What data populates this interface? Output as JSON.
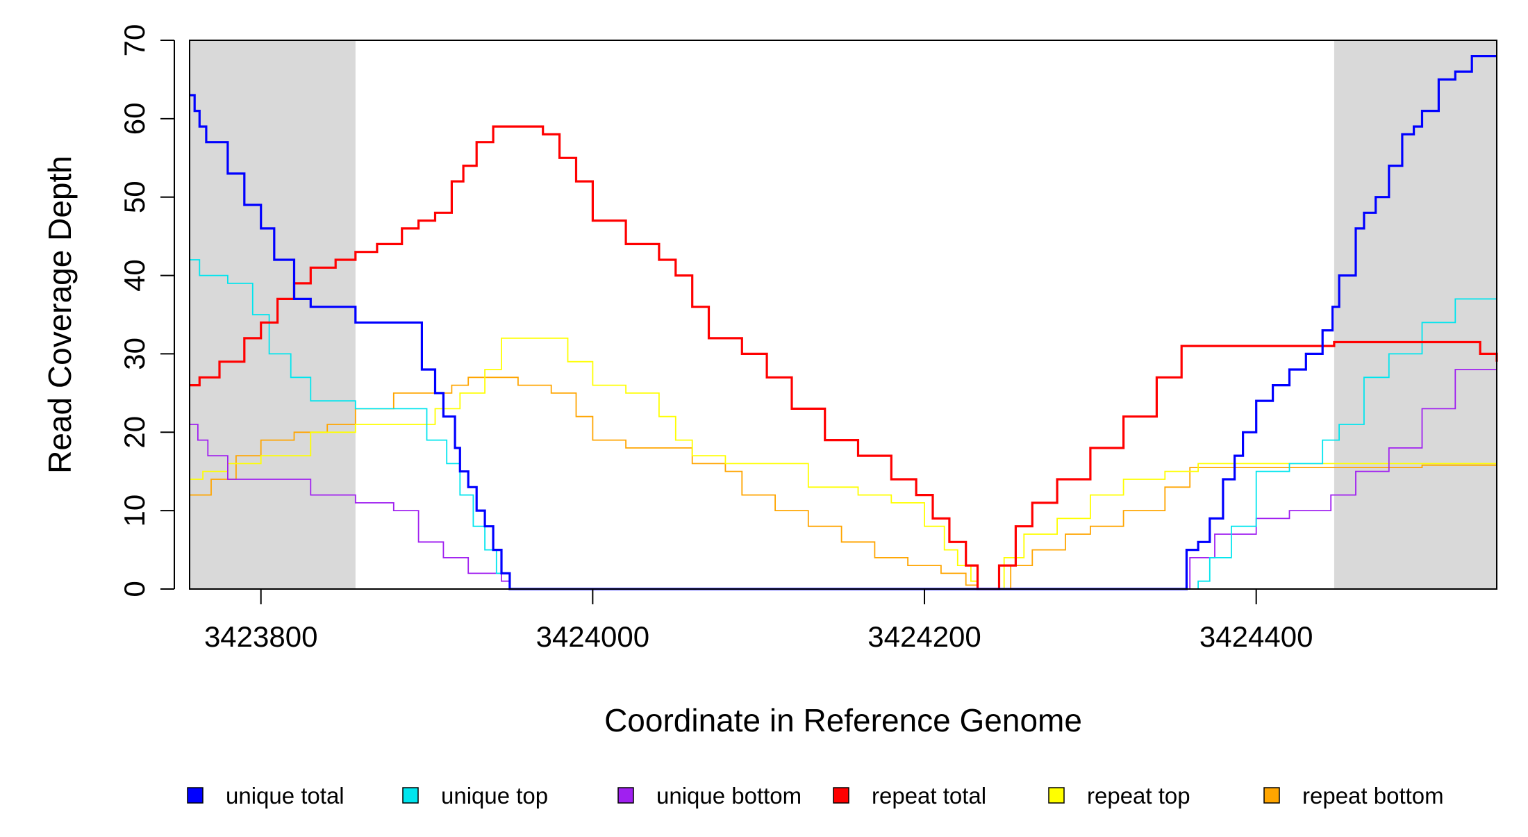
{
  "chart_data": {
    "type": "line",
    "xlabel": "Coordinate in Reference Genome",
    "ylabel": "Read Coverage Depth",
    "xlim": [
      3423757,
      3424545
    ],
    "ylim": [
      0,
      70
    ],
    "x_ticks": [
      3423800,
      3424000,
      3424200,
      3424400
    ],
    "x_tick_labels": [
      "3423800",
      "3424000",
      "3424200",
      "3424400"
    ],
    "y_ticks": [
      0,
      10,
      20,
      30,
      40,
      50,
      60,
      70
    ],
    "y_tick_labels": [
      "0",
      "10",
      "20",
      "30",
      "40",
      "50",
      "60",
      "70"
    ],
    "shaded_regions": [
      [
        3423757,
        3423857
      ],
      [
        3424447,
        3424545
      ]
    ],
    "grid": false,
    "legend_position": "bottom",
    "series": [
      {
        "name": "unique total",
        "color": "#0000ff",
        "x": [
          3423757,
          3423760,
          3423763,
          3423767,
          3423780,
          3423790,
          3423800,
          3423808,
          3423820,
          3423830,
          3423857,
          3423885,
          3423897,
          3423905,
          3423910,
          3423917,
          3423920,
          3423925,
          3423930,
          3423935,
          3423940,
          3423945,
          3423950,
          3424355,
          3424358,
          3424365,
          3424372,
          3424380,
          3424387,
          3424392,
          3424400,
          3424410,
          3424420,
          3424430,
          3424440,
          3424446,
          3424450,
          3424460,
          3424465,
          3424472,
          3424480,
          3424488,
          3424495,
          3424500,
          3424510,
          3424520,
          3424530,
          3424545
        ],
        "y": [
          63,
          61,
          59,
          57,
          53,
          49,
          46,
          42,
          37,
          36,
          34,
          34,
          28,
          25,
          22,
          18,
          15,
          13,
          10,
          8,
          5,
          2,
          0,
          0,
          5,
          6,
          9,
          14,
          17,
          20,
          24,
          26,
          28,
          30,
          33,
          36,
          40,
          46,
          48,
          50,
          54,
          58,
          59,
          61,
          65,
          66,
          68,
          68
        ]
      },
      {
        "name": "unique top",
        "color": "#00e5ee",
        "x": [
          3423757,
          3423763,
          3423780,
          3423795,
          3423805,
          3423818,
          3423830,
          3423857,
          3423880,
          3423900,
          3423912,
          3423920,
          3423928,
          3423935,
          3423942,
          3423950,
          3424355,
          3424365,
          3424372,
          3424385,
          3424400,
          3424420,
          3424440,
          3424450,
          3424465,
          3424480,
          3424500,
          3424520,
          3424545
        ],
        "y": [
          42,
          40,
          39,
          35,
          30,
          27,
          24,
          23,
          23,
          19,
          16,
          12,
          8,
          5,
          2,
          0,
          0,
          1,
          4,
          8,
          15,
          16,
          19,
          21,
          27,
          30,
          34,
          37,
          39
        ]
      },
      {
        "name": "unique bottom",
        "color": "#a020f0",
        "x": [
          3423757,
          3423762,
          3423768,
          3423780,
          3423800,
          3423830,
          3423857,
          3423880,
          3423895,
          3423910,
          3423925,
          3423945,
          3423950,
          3424355,
          3424360,
          3424375,
          3424400,
          3424420,
          3424445,
          3424460,
          3424480,
          3424500,
          3424520,
          3424545
        ],
        "y": [
          21,
          19,
          17,
          14,
          14,
          12,
          11,
          10,
          6,
          4,
          2,
          1,
          0,
          0,
          4,
          7,
          9,
          10,
          12,
          15,
          18,
          23,
          28,
          29
        ]
      },
      {
        "name": "repeat total",
        "color": "#ff0000",
        "x": [
          3423757,
          3423763,
          3423775,
          3423790,
          3423800,
          3423810,
          3423820,
          3423830,
          3423845,
          3423857,
          3423870,
          3423885,
          3423895,
          3423905,
          3423915,
          3423922,
          3423930,
          3423940,
          3423955,
          3423970,
          3423980,
          3423990,
          3424000,
          3424020,
          3424040,
          3424050,
          3424060,
          3424070,
          3424090,
          3424105,
          3424120,
          3424140,
          3424160,
          3424180,
          3424195,
          3424205,
          3424215,
          3424225,
          3424232,
          3424238,
          3424245,
          3424255,
          3424265,
          3424280,
          3424300,
          3424320,
          3424340,
          3424355,
          3424400,
          3424447,
          3424520,
          3424535,
          3424545
        ],
        "y": [
          26,
          27,
          29,
          32,
          34,
          37,
          39,
          41,
          42,
          43,
          44,
          46,
          47,
          48,
          52,
          54,
          57,
          59,
          59,
          58,
          55,
          52,
          47,
          44,
          42,
          40,
          36,
          32,
          30,
          27,
          23,
          19,
          17,
          14,
          12,
          9,
          6,
          3,
          0,
          0,
          3,
          8,
          11,
          14,
          18,
          22,
          27,
          31,
          31,
          31.5,
          31.5,
          30,
          29
        ]
      },
      {
        "name": "repeat top",
        "color": "#ffff00",
        "x": [
          3423757,
          3423765,
          3423780,
          3423800,
          3423830,
          3423857,
          3423890,
          3423905,
          3423920,
          3423935,
          3423945,
          3423975,
          3423985,
          3424000,
          3424020,
          3424040,
          3424050,
          3424060,
          3424080,
          3424100,
          3424130,
          3424160,
          3424180,
          3424200,
          3424212,
          3424220,
          3424228,
          3424232,
          3424238,
          3424248,
          3424260,
          3424280,
          3424300,
          3424320,
          3424345,
          3424365,
          3424400,
          3424500,
          3424535,
          3424545
        ],
        "y": [
          14,
          15,
          16,
          17,
          20,
          21,
          21,
          23,
          25,
          28,
          32,
          32,
          29,
          26,
          25,
          22,
          19,
          17,
          16,
          16,
          13,
          12,
          11,
          8,
          5,
          3,
          1,
          0,
          0,
          4,
          7,
          9,
          12,
          14,
          15,
          16,
          16,
          16,
          16,
          13
        ]
      },
      {
        "name": "repeat bottom",
        "color": "#ffa500",
        "x": [
          3423757,
          3423770,
          3423785,
          3423800,
          3423820,
          3423840,
          3423857,
          3423880,
          3423900,
          3423915,
          3423925,
          3423935,
          3423955,
          3423975,
          3423990,
          3424000,
          3424020,
          3424040,
          3424060,
          3424080,
          3424090,
          3424110,
          3424130,
          3424150,
          3424170,
          3424190,
          3424210,
          3424225,
          3424232,
          3424240,
          3424252,
          3424265,
          3424285,
          3424300,
          3424320,
          3424345,
          3424360,
          3424400,
          3424500,
          3424535,
          3424545
        ],
        "y": [
          12,
          14,
          17,
          19,
          20,
          21,
          23,
          25,
          25,
          26,
          27,
          27,
          26,
          25,
          22,
          19,
          18,
          18,
          16,
          15,
          12,
          10,
          8,
          6,
          4,
          3,
          2,
          0.5,
          0,
          0,
          3,
          5,
          7,
          8,
          10,
          13,
          15.5,
          15.5,
          15.8,
          15.8,
          15.5
        ]
      }
    ]
  }
}
